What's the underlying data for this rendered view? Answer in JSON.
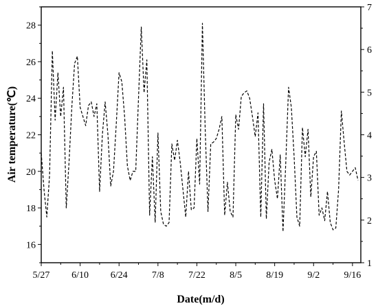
{
  "chart_data": {
    "type": "line",
    "xlabel": "Date(m/d)",
    "ylabel": "Air temperature(℃)",
    "x_tick_labels": [
      "5/27",
      "6/10",
      "6/24",
      "7/8",
      "7/22",
      "8/5",
      "8/19",
      "9/2",
      "9/16"
    ],
    "x_range_days": [
      0,
      115
    ],
    "ylim": [
      15,
      29
    ],
    "y_ticks": [
      16,
      18,
      20,
      22,
      24,
      26,
      28
    ],
    "y2lim": [
      1,
      7
    ],
    "y2_ticks": [
      1,
      2,
      3,
      4,
      5,
      6,
      7
    ],
    "grid": false,
    "line_style": "dashed",
    "line_color": "#000000",
    "series": [
      {
        "values": [
          21.0,
          19.0,
          17.5,
          19.8,
          26.6,
          22.8,
          25.4,
          23.0,
          24.6,
          18.0,
          20.5,
          23.5,
          25.9,
          26.3,
          23.5,
          23.0,
          22.5,
          23.6,
          23.8,
          23.0,
          23.7,
          18.9,
          22.0,
          23.8,
          22.0,
          19.2,
          20.0,
          22.6,
          25.4,
          24.9,
          23.0,
          20.3,
          19.5,
          20.0,
          20.0,
          24.0,
          27.9,
          24.3,
          26.1,
          17.6,
          20.8,
          17.2,
          22.1,
          17.8,
          17.1,
          17.0,
          17.2,
          21.5,
          20.6,
          21.7,
          20.5,
          19.0,
          17.5,
          20.0,
          17.9,
          18.0,
          21.8,
          19.3,
          28.1,
          22.3,
          17.8,
          21.5,
          21.6,
          21.8,
          22.3,
          23.0,
          17.6,
          19.4,
          17.8,
          17.5,
          23.1,
          22.3,
          24.1,
          24.3,
          24.4,
          24.0,
          23.0,
          21.9,
          23.2,
          17.5,
          23.7,
          17.4,
          20.5,
          21.2,
          19.5,
          18.5,
          20.9,
          16.7,
          20.5,
          24.6,
          23.5,
          20.8,
          17.5,
          17.0,
          22.4,
          20.8,
          22.3,
          18.6,
          20.8,
          21.1,
          17.6,
          18.0,
          17.3,
          18.9,
          17.2,
          16.8,
          16.9,
          19.0,
          23.3,
          21.6,
          20.0,
          19.8,
          20.0,
          20.2,
          19.5
        ]
      }
    ]
  }
}
